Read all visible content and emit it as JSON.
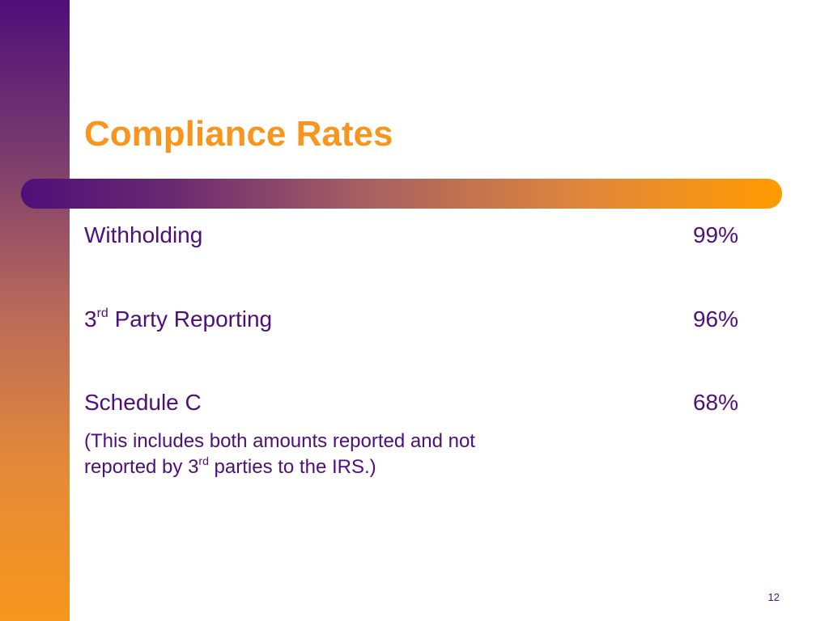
{
  "slide": {
    "title": "Compliance Rates",
    "rows": [
      {
        "label": "Withholding",
        "value": "99%"
      },
      {
        "label_prefix": "3",
        "label_sup": "rd",
        "label_rest": " Party Reporting",
        "value": "96%"
      },
      {
        "label": "Schedule C",
        "value": "68%"
      }
    ],
    "note": {
      "line1": "(This includes both amounts reported and not",
      "line2_prefix": "reported by 3",
      "line2_sup": "rd",
      "line2_rest": " parties to the IRS.)"
    },
    "page_number": "12"
  },
  "colors": {
    "title": "#f7951d",
    "text": "#4e0f7a",
    "accent_purple": "#4e0f7a",
    "accent_orange": "#ff9b00"
  }
}
